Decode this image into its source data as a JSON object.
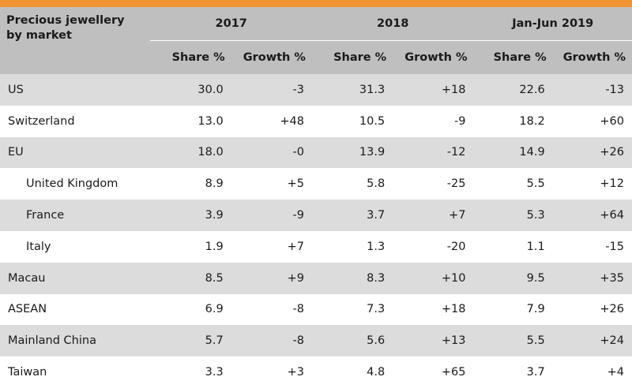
{
  "table": {
    "title": "Precious jewellery by market",
    "title_line1": "Precious jewellery",
    "title_line2": "by market",
    "periods": [
      "2017",
      "2018",
      "Jan-Jun 2019"
    ],
    "sub_share": "Share %",
    "sub_growth": "Growth %",
    "rows": [
      {
        "market": "US",
        "indent": false,
        "v": [
          "30.0",
          "-3",
          "31.3",
          "+18",
          "22.6",
          "-13"
        ]
      },
      {
        "market": "Switzerland",
        "indent": false,
        "v": [
          "13.0",
          "+48",
          "10.5",
          "-9",
          "18.2",
          "+60"
        ]
      },
      {
        "market": "EU",
        "indent": false,
        "v": [
          "18.0",
          "-0",
          "13.9",
          "-12",
          "14.9",
          "+26"
        ]
      },
      {
        "market": "United Kingdom",
        "indent": true,
        "v": [
          "8.9",
          "+5",
          "5.8",
          "-25",
          "5.5",
          "+12"
        ]
      },
      {
        "market": "France",
        "indent": true,
        "v": [
          "3.9",
          "-9",
          "3.7",
          "+7",
          "5.3",
          "+64"
        ]
      },
      {
        "market": "Italy",
        "indent": true,
        "v": [
          "1.9",
          "+7",
          "1.3",
          "-20",
          "1.1",
          "-15"
        ]
      },
      {
        "market": "Macau",
        "indent": false,
        "v": [
          "8.5",
          "+9",
          "8.3",
          "+10",
          "9.5",
          "+35"
        ]
      },
      {
        "market": "ASEAN",
        "indent": false,
        "v": [
          "6.9",
          "-8",
          "7.3",
          "+18",
          "7.9",
          "+26"
        ]
      },
      {
        "market": "Mainland China",
        "indent": false,
        "v": [
          "5.7",
          "-8",
          "5.6",
          "+13",
          "5.5",
          "+24"
        ]
      },
      {
        "market": "Taiwan",
        "indent": false,
        "v": [
          "3.3",
          "+3",
          "4.8",
          "+65",
          "3.7",
          "+4"
        ]
      }
    ]
  },
  "colors": {
    "accent_bar": "#f39433",
    "header_bg": "#bfbfbf",
    "row_shade": "#dcdcdc"
  }
}
